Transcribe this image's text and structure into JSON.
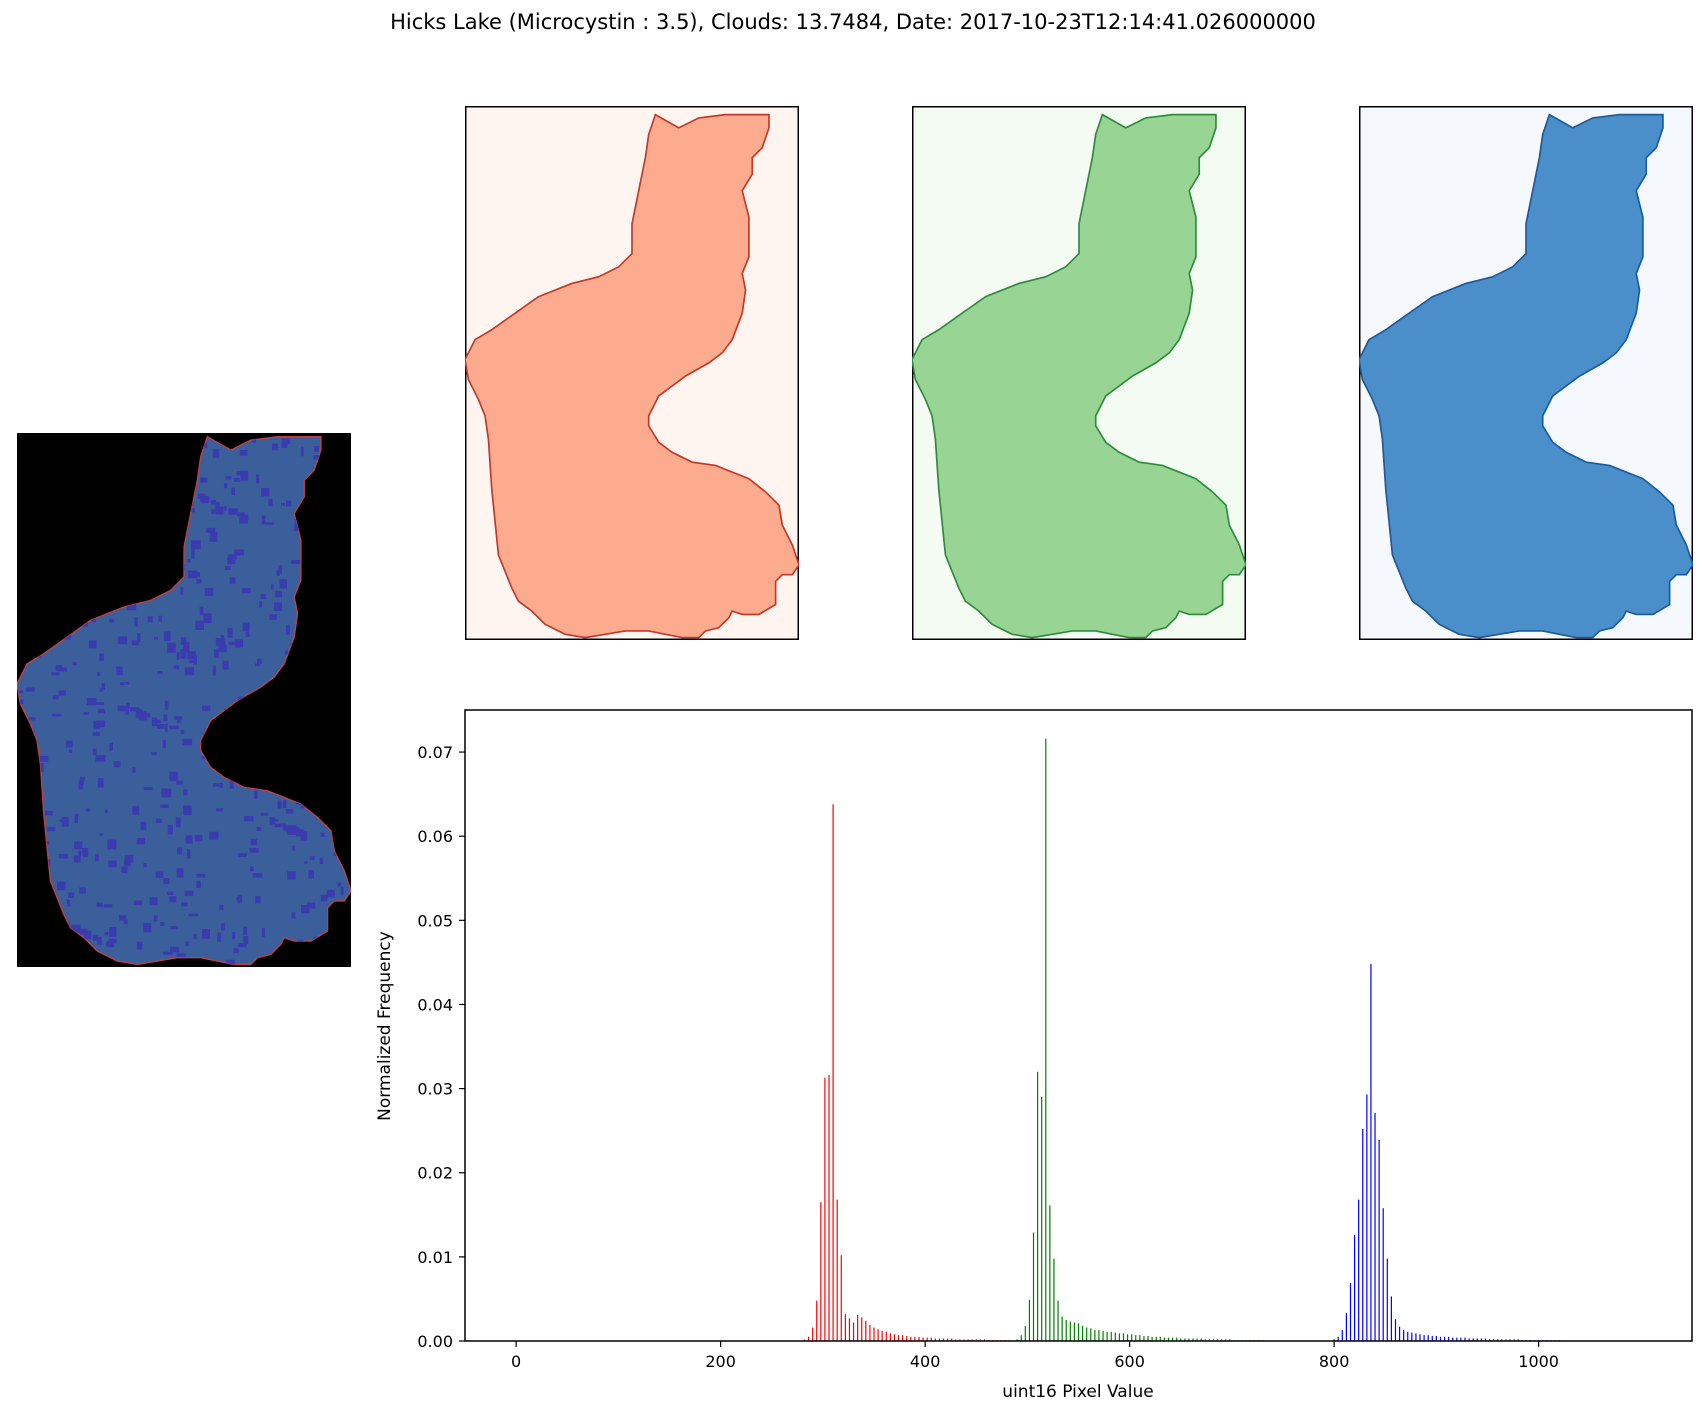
{
  "figure": {
    "title": "Hicks Lake (Microcystin : 3.5), Clouds: 13.7484, Date: 2017-10-23T12:14:41.026000000"
  },
  "panels": {
    "rgb_composite": {
      "background": "#000000",
      "fill": "#3a5f9a",
      "speckle": "#3b3bb0",
      "edge": "#c0404a"
    },
    "red_band": {
      "background": "#fff5f0",
      "fill": "#fcab8f",
      "edge": "#c0392b"
    },
    "green_band": {
      "background": "#f4fbf2",
      "fill": "#98d594",
      "edge": "#2e8b3e"
    },
    "blue_band": {
      "background": "#f5f9fe",
      "fill": "#4a8fc9",
      "edge": "#1c5a9c"
    }
  },
  "chart_data": {
    "type": "bar",
    "title": "",
    "xlabel": "uint16 Pixel Value",
    "ylabel": "Normalized Frequency",
    "xlim": [
      -50,
      1150
    ],
    "ylim": [
      0,
      0.075
    ],
    "x_ticks": [
      0,
      200,
      400,
      600,
      800,
      1000
    ],
    "y_ticks": [
      0.0,
      0.01,
      0.02,
      0.03,
      0.04,
      0.05,
      0.06,
      0.07
    ],
    "x_tick_labels": [
      "0",
      "200",
      "400",
      "600",
      "800",
      "1000"
    ],
    "y_tick_labels": [
      "0.00",
      "0.01",
      "0.02",
      "0.03",
      "0.04",
      "0.05",
      "0.06",
      "0.07"
    ],
    "grid": false,
    "series": [
      {
        "color": "#ff0000",
        "x": [
          282,
          286,
          290,
          294,
          298,
          302,
          306,
          310,
          314,
          318,
          322,
          326,
          330,
          334,
          338,
          342,
          346,
          350,
          354,
          358,
          362,
          366,
          370,
          374,
          378,
          382,
          386,
          390,
          394,
          398,
          402,
          406,
          410,
          414,
          418,
          422,
          426,
          430,
          434,
          438,
          442,
          446,
          450,
          454,
          458,
          462,
          466,
          470,
          474,
          478,
          482
        ],
        "values": [
          0.0002,
          0.0005,
          0.0016,
          0.0048,
          0.0165,
          0.0313,
          0.0316,
          0.0638,
          0.0168,
          0.0102,
          0.0032,
          0.0027,
          0.0022,
          0.0031,
          0.0028,
          0.0024,
          0.0019,
          0.0016,
          0.0014,
          0.0012,
          0.0011,
          0.0009,
          0.0008,
          0.0007,
          0.0007,
          0.0006,
          0.0005,
          0.0005,
          0.0005,
          0.0004,
          0.0004,
          0.0004,
          0.0003,
          0.0003,
          0.0003,
          0.0003,
          0.0003,
          0.0002,
          0.0002,
          0.0002,
          0.0002,
          0.0002,
          0.0002,
          0.0002,
          0.0002,
          0.0001,
          0.0001,
          0.0001,
          0.0001,
          0.0001,
          0.0001
        ]
      },
      {
        "color": "#008000",
        "x": [
          490,
          494,
          498,
          502,
          506,
          510,
          514,
          518,
          522,
          526,
          530,
          534,
          538,
          542,
          546,
          550,
          554,
          558,
          562,
          566,
          570,
          574,
          578,
          582,
          586,
          590,
          594,
          598,
          602,
          606,
          610,
          614,
          618,
          622,
          626,
          630,
          634,
          638,
          642,
          646,
          650,
          654,
          658,
          662,
          666,
          670,
          674,
          678,
          682,
          686,
          690,
          694,
          698,
          702,
          706,
          710,
          714,
          718,
          722,
          726,
          730
        ],
        "values": [
          0.0002,
          0.0007,
          0.0018,
          0.0049,
          0.0129,
          0.032,
          0.029,
          0.0716,
          0.0161,
          0.0098,
          0.0048,
          0.0029,
          0.0025,
          0.0023,
          0.0022,
          0.0021,
          0.0018,
          0.0016,
          0.0015,
          0.0013,
          0.0013,
          0.0012,
          0.0011,
          0.0011,
          0.001,
          0.0009,
          0.0009,
          0.0008,
          0.0008,
          0.0007,
          0.0007,
          0.0006,
          0.0006,
          0.0005,
          0.0005,
          0.0005,
          0.0004,
          0.0004,
          0.0004,
          0.0004,
          0.0003,
          0.0003,
          0.0003,
          0.0003,
          0.0003,
          0.0003,
          0.0002,
          0.0002,
          0.0002,
          0.0002,
          0.0002,
          0.0002,
          0.0002,
          0.0001,
          0.0001,
          0.0001,
          0.0001,
          0.0001,
          0.0001,
          0.0001,
          0.0001
        ]
      },
      {
        "color": "#0000ff",
        "x": [
          800,
          804,
          808,
          812,
          816,
          820,
          824,
          828,
          832,
          836,
          840,
          844,
          848,
          852,
          856,
          860,
          864,
          868,
          872,
          876,
          880,
          884,
          888,
          892,
          896,
          900,
          904,
          908,
          912,
          916,
          920,
          924,
          928,
          932,
          936,
          940,
          944,
          948,
          952,
          956,
          960,
          964,
          968,
          972,
          976,
          980,
          984,
          988,
          992,
          996,
          1000,
          1004,
          1008,
          1012,
          1016,
          1020
        ],
        "values": [
          0.0002,
          0.0005,
          0.0013,
          0.0033,
          0.0069,
          0.0126,
          0.0168,
          0.0252,
          0.0293,
          0.0448,
          0.0271,
          0.0239,
          0.0158,
          0.0098,
          0.0053,
          0.0026,
          0.0017,
          0.0013,
          0.0011,
          0.001,
          0.0009,
          0.0008,
          0.0007,
          0.0007,
          0.0006,
          0.0006,
          0.0005,
          0.0005,
          0.0005,
          0.0004,
          0.0004,
          0.0004,
          0.0004,
          0.0003,
          0.0003,
          0.0003,
          0.0003,
          0.0003,
          0.0002,
          0.0002,
          0.0002,
          0.0002,
          0.0002,
          0.0002,
          0.0002,
          0.0002,
          0.0001,
          0.0001,
          0.0001,
          0.0001,
          0.0001,
          0.0001,
          0.0001,
          0.0001,
          0.0001,
          0.0001
        ]
      }
    ]
  }
}
